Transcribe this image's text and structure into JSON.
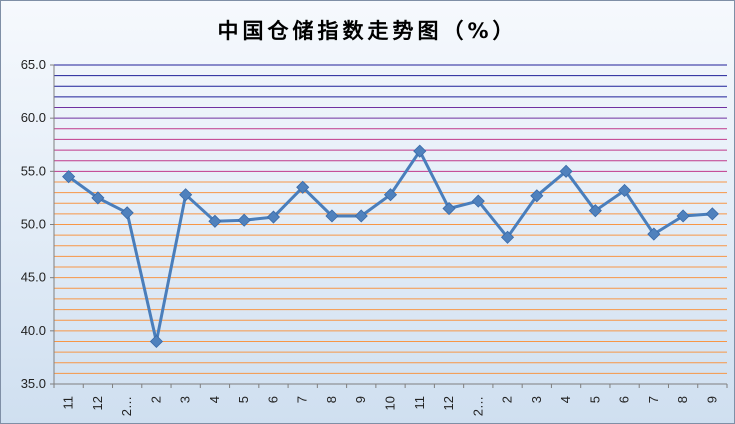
{
  "chart_data": {
    "type": "line",
    "title": "中国仓储指数走势图（%）",
    "categories": [
      "11",
      "12",
      "2…",
      "2",
      "3",
      "4",
      "5",
      "6",
      "7",
      "8",
      "9",
      "10",
      "11",
      "12",
      "2…",
      "2",
      "3",
      "4",
      "5",
      "6",
      "7",
      "8",
      "9"
    ],
    "series": [
      {
        "values": [
          54.5,
          52.5,
          51.1,
          39.0,
          52.8,
          50.3,
          50.4,
          50.7,
          53.5,
          50.8,
          50.8,
          52.8,
          56.9,
          51.5,
          52.2,
          48.8,
          52.7,
          55.0,
          51.3,
          53.2,
          49.1,
          50.8,
          51.0
        ]
      }
    ],
    "y_ticks": [
      "35.0",
      "40.0",
      "45.0",
      "50.0",
      "55.0",
      "60.0",
      "65.0"
    ],
    "ylim": [
      35,
      65
    ],
    "grid": true,
    "grid_step": 1,
    "colors": {
      "series": "#4a7ebb",
      "marker": "#4f81bd",
      "grid_orange": "#f79646",
      "grid_magenta": "#c0388a",
      "grid_purple": "#7030a0",
      "grid_navy": "#1f1f99"
    }
  }
}
